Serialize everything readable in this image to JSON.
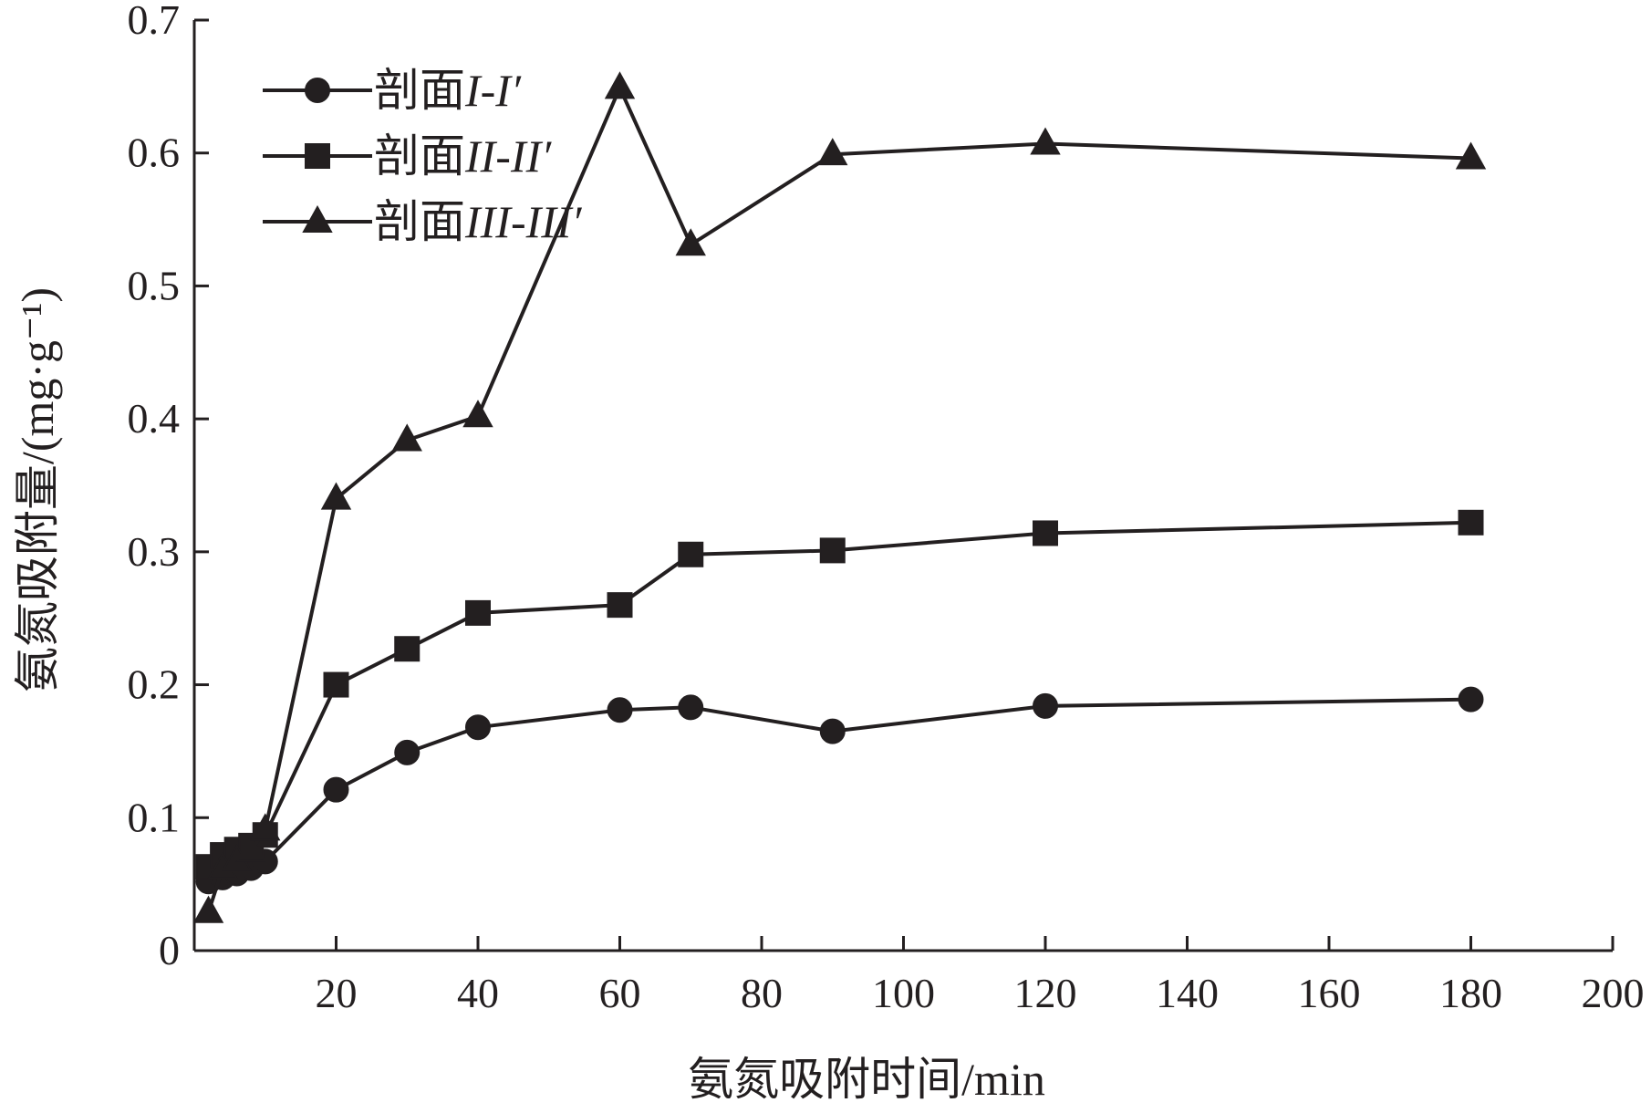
{
  "chart_data": {
    "type": "line",
    "title": "",
    "xlabel": "氨氮吸附时间/min",
    "ylabel": "氨氮吸附量/(mg·g⁻¹)",
    "xlim": [
      0,
      200
    ],
    "ylim": [
      0,
      0.7
    ],
    "x_ticks": [
      20,
      40,
      60,
      80,
      100,
      120,
      140,
      160,
      180,
      200
    ],
    "x_tick_labels": [
      "20",
      "40",
      "60",
      "80",
      "100",
      "120",
      "140",
      "160",
      "180",
      "200"
    ],
    "y_ticks": [
      0,
      0.1,
      0.2,
      0.3,
      0.4,
      0.5,
      0.6,
      0.7
    ],
    "y_tick_labels": [
      "0",
      "0.1",
      "0.2",
      "0.3",
      "0.4",
      "0.5",
      "0.6",
      "0.7"
    ],
    "grid": false,
    "legend_position": "top-left",
    "x": [
      2,
      4,
      6,
      8,
      10,
      20,
      30,
      40,
      60,
      70,
      90,
      120,
      180
    ],
    "series": [
      {
        "name": "剖面I-I′",
        "name_parts": [
          "剖面",
          "I-I′"
        ],
        "marker": "circle",
        "values": [
          0.052,
          0.055,
          0.058,
          0.062,
          0.067,
          0.121,
          0.149,
          0.168,
          0.181,
          0.183,
          0.165,
          0.184,
          0.189
        ]
      },
      {
        "name": "剖面II-II′",
        "name_parts": [
          "剖面",
          "II-II′"
        ],
        "marker": "square",
        "values": [
          0.063,
          0.072,
          0.076,
          0.079,
          0.087,
          0.2,
          0.227,
          0.254,
          0.26,
          0.298,
          0.301,
          0.314,
          0.322
        ]
      },
      {
        "name": "剖面III-III′",
        "name_parts": [
          "剖面",
          "III-III′"
        ],
        "marker": "triangle",
        "values": [
          0.029,
          0.062,
          0.068,
          0.075,
          0.091,
          0.34,
          0.384,
          0.402,
          0.649,
          0.531,
          0.599,
          0.607,
          0.596
        ]
      }
    ]
  }
}
